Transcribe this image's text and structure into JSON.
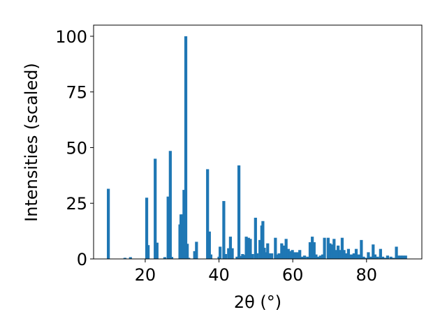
{
  "chart_data": {
    "type": "bar",
    "title": "",
    "xlabel": "2θ (°)",
    "ylabel": "Intensities (scaled)",
    "xlim": [
      6,
      95
    ],
    "ylim": [
      0,
      105
    ],
    "xticks": [
      20,
      40,
      60,
      80
    ],
    "yticks": [
      0,
      25,
      50,
      75,
      100
    ],
    "grid": false,
    "bar_color": "#1f77b4",
    "bar_width": 0.8,
    "x": [
      10.0,
      14.5,
      16.0,
      20.4,
      20.8,
      22.7,
      23.2,
      25.3,
      26.2,
      26.8,
      27.2,
      29.4,
      29.7,
      30.1,
      30.5,
      31.0,
      31.4,
      31.8,
      33.4,
      33.9,
      36.9,
      37.4,
      37.8,
      40.0,
      40.3,
      41.3,
      41.8,
      42.6,
      43.1,
      43.6,
      44.9,
      45.4,
      45.7,
      46.4,
      47.0,
      47.4,
      48.0,
      48.5,
      49.1,
      49.9,
      50.3,
      51.1,
      51.6,
      51.9,
      52.3,
      52.7,
      53.2,
      53.8,
      54.3,
      55.3,
      55.7,
      56.3,
      57.0,
      57.6,
      58.2,
      58.8,
      59.3,
      59.9,
      60.6,
      61.3,
      61.9,
      62.6,
      63.2,
      64.0,
      64.7,
      65.3,
      65.8,
      66.3,
      67.0,
      67.5,
      68.1,
      68.6,
      69.6,
      70.1,
      70.6,
      71.2,
      71.8,
      72.3,
      72.8,
      73.4,
      73.9,
      74.6,
      75.1,
      75.9,
      76.6,
      77.2,
      77.9,
      78.6,
      79.2,
      79.8,
      80.5,
      81.1,
      81.8,
      82.3,
      83.0,
      83.8,
      84.4,
      85.0,
      85.7,
      86.6,
      87.3,
      88.1,
      88.7,
      89.3,
      89.9,
      90.6
    ],
    "values": [
      31.5,
      0.5,
      0.8,
      27.5,
      6.2,
      45.0,
      7.3,
      0.8,
      28.0,
      48.5,
      0.9,
      15.5,
      20.0,
      20.0,
      31.0,
      100.0,
      6.8,
      0.5,
      3.5,
      7.7,
      40.3,
      12.3,
      2.0,
      1.0,
      5.5,
      26.0,
      2.2,
      4.8,
      10.0,
      4.8,
      1.0,
      42.0,
      1.3,
      2.2,
      1.8,
      10.0,
      9.5,
      9.0,
      2.2,
      18.5,
      2.5,
      8.5,
      15.0,
      17.0,
      5.0,
      3.0,
      7.0,
      2.5,
      2.5,
      9.5,
      2.0,
      2.5,
      7.0,
      6.0,
      9.0,
      4.5,
      3.5,
      4.0,
      3.0,
      3.0,
      4.0,
      1.0,
      1.5,
      1.0,
      7.5,
      10.0,
      7.5,
      2.0,
      1.0,
      1.5,
      2.0,
      9.5,
      9.5,
      7.0,
      6.5,
      9.0,
      4.0,
      6.0,
      4.0,
      9.5,
      4.0,
      2.5,
      4.5,
      2.0,
      2.5,
      4.5,
      2.0,
      8.5,
      1.0,
      0.5,
      3.0,
      1.0,
      6.5,
      2.0,
      1.0,
      4.5,
      1.0,
      0.5,
      1.5,
      1.0,
      0.5,
      5.5,
      1.5,
      1.5,
      1.5,
      1.5
    ]
  }
}
